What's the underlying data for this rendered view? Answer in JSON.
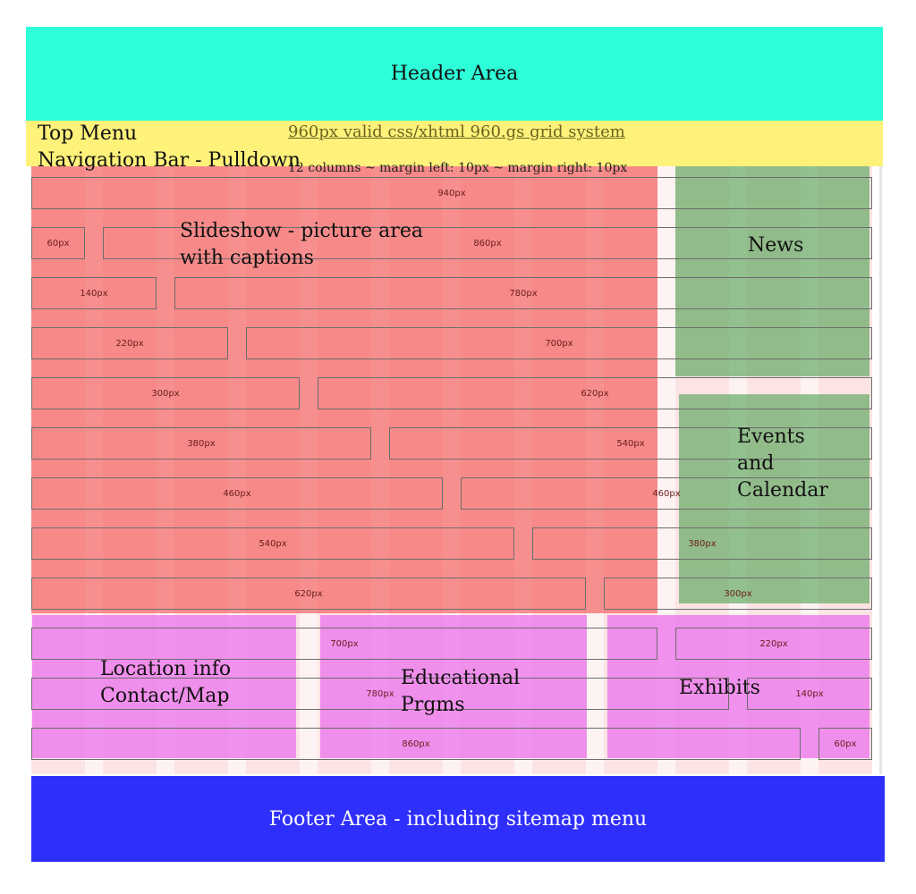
{
  "header": {
    "label": "Header Area"
  },
  "top_menu": {
    "line1": "Top Menu",
    "line2": "Navigation Bar - Pulldown",
    "grid_link": "960px valid css/xhtml 960.gs grid system",
    "grid_sub": "12 columns ~ margin left: 10px ~ margin right: 10px"
  },
  "slideshow": {
    "line1": "Slideshow - picture area",
    "line2": "with captions"
  },
  "news": {
    "label": "News"
  },
  "events": {
    "line1": "Events",
    "line2": "and",
    "line3": "Calendar"
  },
  "location": {
    "line1": "Location info",
    "line2": "Contact/Map"
  },
  "educational": {
    "line1": "Educational",
    "line2": "Prgms"
  },
  "exhibits": {
    "label": "Exhibits"
  },
  "footer": {
    "label": "Footer Area - including sitemap menu"
  },
  "grid_rows": [
    [
      "940px"
    ],
    [
      "60px",
      "860px"
    ],
    [
      "140px",
      "780px"
    ],
    [
      "220px",
      "700px"
    ],
    [
      "300px",
      "620px"
    ],
    [
      "380px",
      "540px"
    ],
    [
      "460px",
      "460px"
    ],
    [
      "540px",
      "380px"
    ],
    [
      "620px",
      "300px"
    ],
    [
      "700px",
      "220px"
    ],
    [
      "780px",
      "140px"
    ],
    [
      "860px",
      "60px"
    ]
  ],
  "colors": {
    "header": "#2dffd9",
    "top_menu": "#fff27a",
    "slideshow": "#f45050",
    "news_events": "#64aa64",
    "bottom_boxes": "#ec78ec",
    "footer": "#2f2ffb"
  }
}
